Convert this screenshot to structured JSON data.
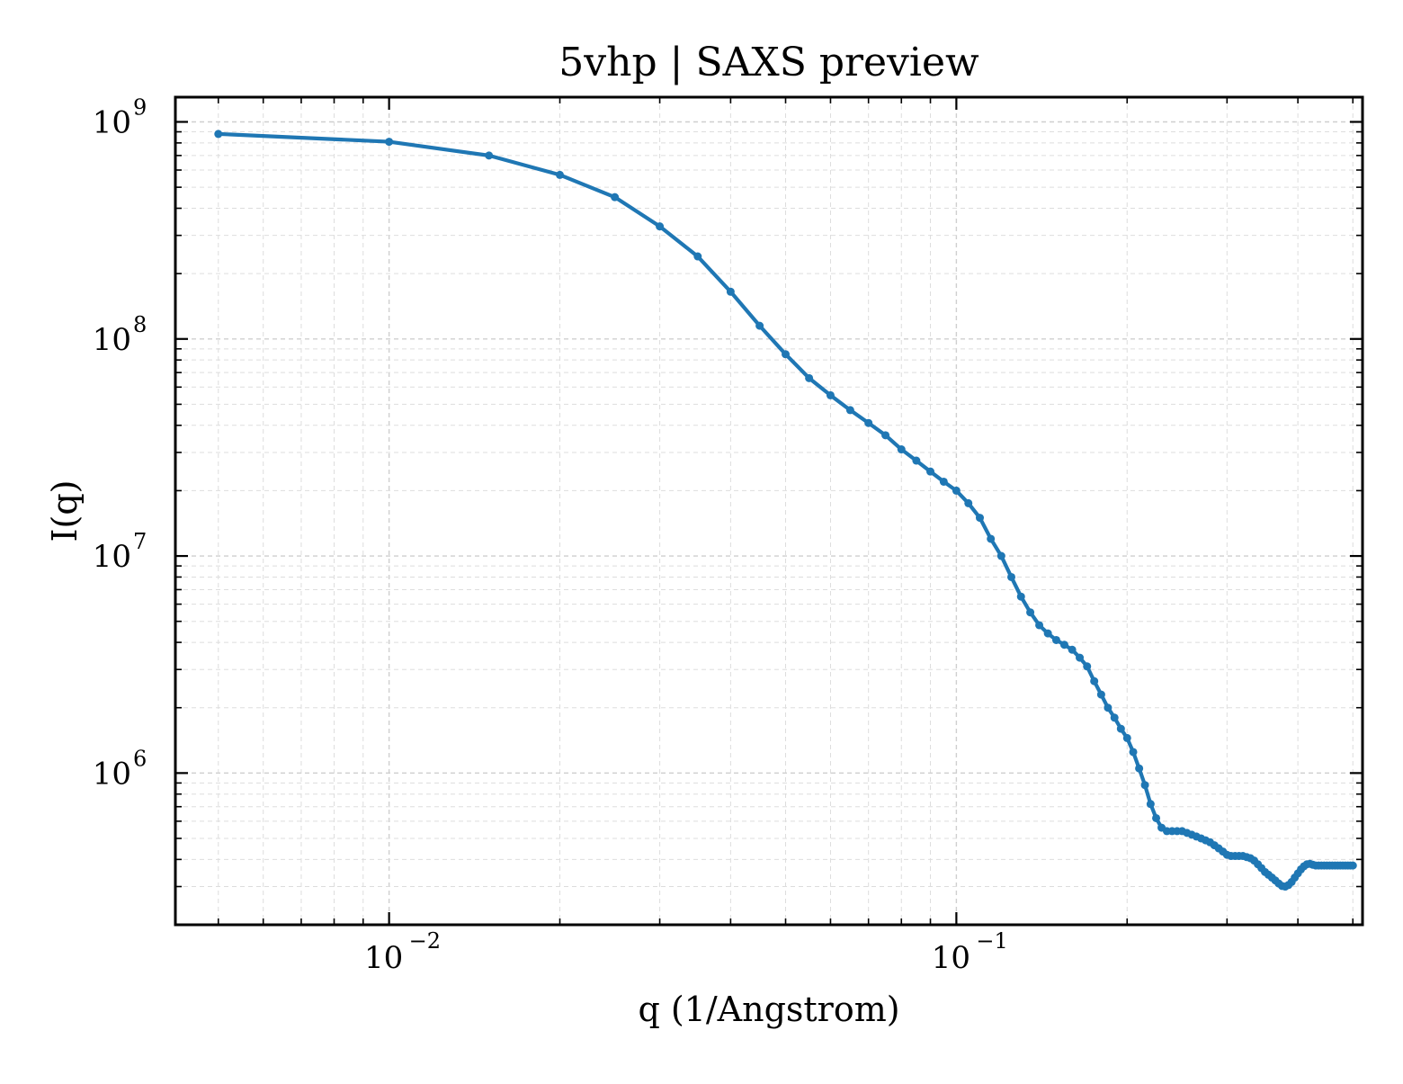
{
  "chart_data": {
    "type": "line",
    "title": "5vhp | SAXS preview",
    "xlabel": "q (1/Angstrom)",
    "ylabel": "I(q)",
    "x_scale": "log",
    "y_scale": "log",
    "xlim": [
      0.0042,
      0.52
    ],
    "ylim": [
      200000,
      1300000000
    ],
    "grid": true,
    "x_ticks": [
      {
        "value": 0.01,
        "base": "10",
        "exp": "−2"
      },
      {
        "value": 0.1,
        "base": "10",
        "exp": "−1"
      }
    ],
    "y_ticks": [
      {
        "value": 1000000,
        "base": "10",
        "exp": "6"
      },
      {
        "value": 10000000,
        "base": "10",
        "exp": "7"
      },
      {
        "value": 100000000,
        "base": "10",
        "exp": "8"
      },
      {
        "value": 1000000000,
        "base": "10",
        "exp": "9"
      }
    ],
    "series": [
      {
        "color": "#1f77b4",
        "x": [
          0.005,
          0.01,
          0.015,
          0.02,
          0.025,
          0.03,
          0.035,
          0.04,
          0.045,
          0.05,
          0.055,
          0.06,
          0.065,
          0.07,
          0.075,
          0.08,
          0.085,
          0.09,
          0.095,
          0.1,
          0.105,
          0.11,
          0.115,
          0.12,
          0.125,
          0.13,
          0.135,
          0.14,
          0.145,
          0.15,
          0.155,
          0.16,
          0.165,
          0.17,
          0.175,
          0.18,
          0.185,
          0.19,
          0.195,
          0.2,
          0.205,
          0.21,
          0.215,
          0.22,
          0.225,
          0.23,
          0.235,
          0.24,
          0.245,
          0.25,
          0.255,
          0.26,
          0.265,
          0.27,
          0.275,
          0.28,
          0.285,
          0.29,
          0.295,
          0.3,
          0.305,
          0.31,
          0.315,
          0.32,
          0.325,
          0.33,
          0.335,
          0.34,
          0.345,
          0.35,
          0.355,
          0.36,
          0.365,
          0.37,
          0.375,
          0.38,
          0.385,
          0.39,
          0.395,
          0.4,
          0.405,
          0.41,
          0.415,
          0.42,
          0.425,
          0.43,
          0.435,
          0.44,
          0.445,
          0.45,
          0.455,
          0.46,
          0.465,
          0.47,
          0.475,
          0.48,
          0.485,
          0.49,
          0.495,
          0.5
        ],
        "y": [
          880000000,
          810000000,
          700000000,
          570000000,
          450000000,
          330000000,
          240000000,
          165000000,
          115000000,
          85000000,
          66000000,
          55000000,
          47000000,
          41000000,
          36000000,
          31000000,
          27500000,
          24500000,
          22000000,
          20000000,
          17500000,
          15000000,
          12000000,
          10000000,
          8000000,
          6500000,
          5500000,
          4800000,
          4400000,
          4100000,
          3900000,
          3700000,
          3400000,
          3100000,
          2650000,
          2300000,
          2000000,
          1800000,
          1600000,
          1450000,
          1250000,
          1050000,
          880000,
          720000,
          620000,
          560000,
          540000,
          540000,
          540000,
          540000,
          530000,
          520000,
          510000,
          500000,
          490000,
          480000,
          465000,
          450000,
          435000,
          420000,
          415000,
          415000,
          415000,
          415000,
          410000,
          405000,
          395000,
          380000,
          365000,
          350000,
          340000,
          330000,
          320000,
          310000,
          302000,
          300000,
          305000,
          315000,
          330000,
          345000,
          360000,
          372000,
          380000,
          382000,
          378000,
          375000,
          375000,
          375000,
          375000,
          375000,
          375000,
          375000,
          375000,
          375000,
          375000,
          375000,
          375000,
          375000,
          375000,
          375000
        ]
      }
    ]
  }
}
